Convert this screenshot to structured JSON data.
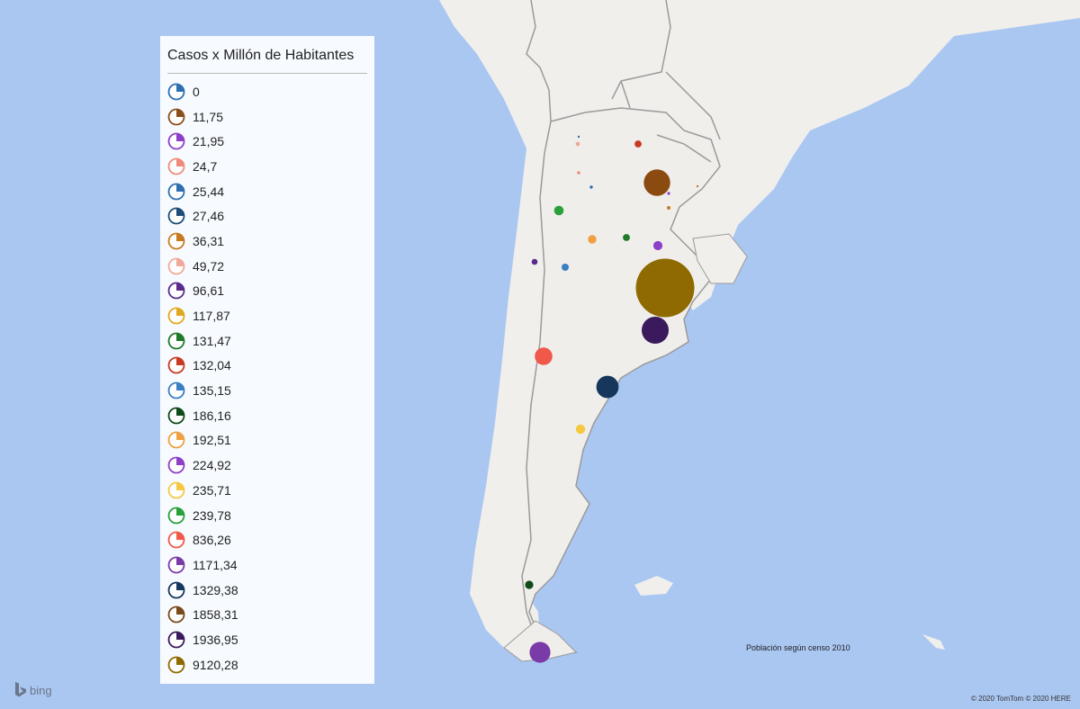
{
  "legend": {
    "title": "Casos x Millón de Habitantes",
    "items": [
      {
        "label": "0",
        "color": "#2f6fb0"
      },
      {
        "label": "11,75",
        "color": "#8b4f1a"
      },
      {
        "label": "21,95",
        "color": "#8e3fc7"
      },
      {
        "label": "24,7",
        "color": "#f08a7a"
      },
      {
        "label": "25,44",
        "color": "#2f6fb0"
      },
      {
        "label": "27,46",
        "color": "#1e4d78"
      },
      {
        "label": "36,31",
        "color": "#c87a22"
      },
      {
        "label": "49,72",
        "color": "#f2a89a"
      },
      {
        "label": "96,61",
        "color": "#5a2a8c"
      },
      {
        "label": "117,87",
        "color": "#e0a820"
      },
      {
        "label": "131,47",
        "color": "#1f7a2a"
      },
      {
        "label": "132,04",
        "color": "#c83a22"
      },
      {
        "label": "135,15",
        "color": "#3a7fc4"
      },
      {
        "label": "186,16",
        "color": "#0f4a18"
      },
      {
        "label": "192,51",
        "color": "#f0a040"
      },
      {
        "label": "224,92",
        "color": "#8e3fc7"
      },
      {
        "label": "235,71",
        "color": "#f5c842"
      },
      {
        "label": "239,78",
        "color": "#2aa03a"
      },
      {
        "label": "836,26",
        "color": "#f0584a"
      },
      {
        "label": "1171,34",
        "color": "#7a3aa8"
      },
      {
        "label": "1329,38",
        "color": "#16365c"
      },
      {
        "label": "1858,31",
        "color": "#7a4a18"
      },
      {
        "label": "1936,95",
        "color": "#3a1a5c"
      },
      {
        "label": "9120,28",
        "color": "#8f6a00"
      }
    ]
  },
  "bubbles": [
    {
      "value": "0",
      "color": "#2f6fb0"
    },
    {
      "value": "11,75",
      "color": "#c87a22"
    },
    {
      "value": "21,95",
      "color": "#8e3fc7"
    },
    {
      "value": "24,7",
      "color": "#f08a7a"
    },
    {
      "value": "25,44",
      "color": "#2f6fb0"
    },
    {
      "value": "27,46",
      "color": "#1e4d78"
    },
    {
      "value": "36,31",
      "color": "#c87a22"
    },
    {
      "value": "49,72",
      "color": "#f2a89a"
    },
    {
      "value": "96,61",
      "color": "#5a2a8c"
    },
    {
      "value": "117,87",
      "color": "#e0a820"
    },
    {
      "value": "131,47",
      "color": "#1f7a2a"
    },
    {
      "value": "132,04",
      "color": "#c83a22"
    },
    {
      "value": "135,15",
      "color": "#3a7fc4"
    },
    {
      "value": "186,16",
      "color": "#0f4a18"
    },
    {
      "value": "192,51",
      "color": "#f0a040"
    },
    {
      "value": "224,92",
      "color": "#8e3fc7"
    },
    {
      "value": "235,71",
      "color": "#f5c842"
    },
    {
      "value": "239,78",
      "color": "#2aa03a"
    },
    {
      "value": "836,26",
      "color": "#f0584a"
    },
    {
      "value": "1171,34",
      "color": "#7a3aa8"
    },
    {
      "value": "1329,38",
      "color": "#16365c"
    },
    {
      "value": "1858,31",
      "color": "#8b4a10"
    },
    {
      "value": "1936,95",
      "color": "#3a1a5c"
    },
    {
      "value": "9120,28",
      "color": "#8f6a00"
    }
  ],
  "note": "Población según censo 2010",
  "attribution": "© 2020 TomTom © 2020 HERE",
  "logo": {
    "name": "bing-logo",
    "label": "bing"
  },
  "colors": {
    "sea": "#aac7f2",
    "land": "#f0efec",
    "argentina": "#f0eeeb",
    "border": "#9a9a9a"
  }
}
